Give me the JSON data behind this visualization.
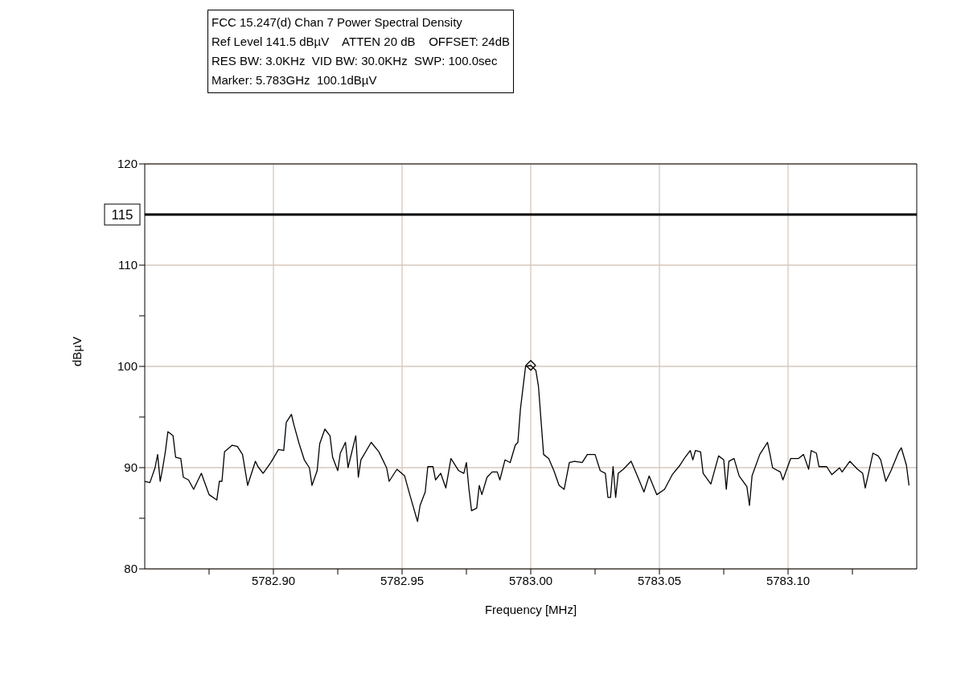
{
  "chart_data": {
    "type": "line",
    "title": "FCC 15.247(d) Chan 7 Power Spectral Density",
    "annotations": [
      "Ref Level 141.5 dBµV    ATTEN 20 dB    OFFSET: 24dB",
      "RES BW: 3.0KHz  VID BW: 30.0KHz  SWP: 100.0sec",
      "Marker: 5.783GHz  100.1dBµV"
    ],
    "xlabel": "Frequency [MHz]",
    "ylabel": "dBµV",
    "xlim": [
      5782.85,
      5783.15
    ],
    "xticks": [
      {
        "value": 5782.875,
        "label": null
      },
      {
        "value": 5782.9,
        "label": "5782.90"
      },
      {
        "value": 5782.925,
        "label": null
      },
      {
        "value": 5782.95,
        "label": "5782.95"
      },
      {
        "value": 5782.975,
        "label": null
      },
      {
        "value": 5783.0,
        "label": "5783.00"
      },
      {
        "value": 5783.025,
        "label": null
      },
      {
        "value": 5783.05,
        "label": "5783.05"
      },
      {
        "value": 5783.075,
        "label": null
      },
      {
        "value": 5783.1,
        "label": "5783.10"
      },
      {
        "value": 5783.125,
        "label": null
      }
    ],
    "ylim": [
      80,
      120
    ],
    "yticks": [
      80,
      {
        "value": 85,
        "label": null
      },
      90,
      {
        "value": 95,
        "label": null
      },
      100,
      {
        "value": 105,
        "label": null
      },
      110,
      120
    ],
    "grid": true,
    "ref_lines": [
      {
        "axis": "y",
        "value": 115,
        "label": "115",
        "color": "#000000"
      }
    ],
    "series": [
      {
        "type": "line",
        "color": "#000000",
        "x": [
          5782.85,
          5782.852,
          5782.854,
          5782.855,
          5782.856,
          5782.857,
          5782.858,
          5782.859,
          5782.861,
          5782.862,
          5782.864,
          5782.865,
          5782.867,
          5782.869,
          5782.872,
          5782.875,
          5782.878,
          5782.879,
          5782.88,
          5782.881,
          5782.884,
          5782.886,
          5782.888,
          5782.89,
          5782.893,
          5782.894,
          5782.896,
          5782.899,
          5782.902,
          5782.904,
          5782.905,
          5782.907,
          5782.908,
          5782.91,
          5782.912,
          5782.914,
          5782.915,
          5782.917,
          5782.918,
          5782.92,
          5782.922,
          5782.923,
          5782.925,
          5782.926,
          5782.928,
          5782.929,
          5782.932,
          5782.933,
          5782.934,
          5782.938,
          5782.941,
          5782.944,
          5782.945,
          5782.948,
          5782.951,
          5782.953,
          5782.956,
          5782.957,
          5782.959,
          5782.96,
          5782.962,
          5782.963,
          5782.965,
          5782.967,
          5782.969,
          5782.972,
          5782.974,
          5782.975,
          5782.976,
          5782.977,
          5782.979,
          5782.98,
          5782.981,
          5782.983,
          5782.985,
          5782.987,
          5782.988,
          5782.99,
          5782.992,
          5782.994,
          5782.995,
          5782.996,
          5782.997,
          5782.998,
          5783.0,
          5783.002,
          5783.003,
          5783.005,
          5783.007,
          5783.009,
          5783.011,
          5783.013,
          5783.015,
          5783.017,
          5783.02,
          5783.022,
          5783.025,
          5783.027,
          5783.029,
          5783.03,
          5783.031,
          5783.032,
          5783.033,
          5783.034,
          5783.036,
          5783.039,
          5783.041,
          5783.044,
          5783.046,
          5783.049,
          5783.052,
          5783.055,
          5783.058,
          5783.06,
          5783.062,
          5783.063,
          5783.064,
          5783.066,
          5783.067,
          5783.07,
          5783.073,
          5783.075,
          5783.076,
          5783.077,
          5783.079,
          5783.081,
          5783.084,
          5783.085,
          5783.086,
          5783.089,
          5783.092,
          5783.093,
          5783.094,
          5783.097,
          5783.098,
          5783.101,
          5783.104,
          5783.106,
          5783.108,
          5783.109,
          5783.111,
          5783.112,
          5783.115,
          5783.117,
          5783.12,
          5783.121,
          5783.124,
          5783.127,
          5783.129,
          5783.13,
          5783.133,
          5783.135,
          5783.136,
          5783.138,
          5783.14,
          5783.143,
          5783.144,
          5783.146,
          5783.147
        ],
        "values": [
          88.65,
          88.52,
          89.98,
          91.3,
          88.65,
          90.0,
          91.56,
          93.55,
          93.15,
          91.03,
          90.9,
          89.05,
          88.79,
          87.86,
          89.44,
          87.33,
          86.8,
          88.65,
          88.65,
          91.56,
          92.22,
          92.1,
          91.3,
          88.25,
          90.63,
          90.1,
          89.44,
          90.5,
          91.8,
          91.7,
          94.47,
          95.26,
          94.2,
          92.36,
          90.77,
          89.98,
          88.25,
          89.7,
          92.36,
          93.81,
          93.15,
          91.03,
          89.7,
          91.43,
          92.5,
          90.0,
          93.15,
          89.05,
          90.77,
          92.5,
          91.56,
          89.98,
          88.65,
          89.84,
          89.18,
          87.33,
          84.68,
          86.27,
          87.6,
          90.1,
          90.1,
          88.79,
          89.44,
          87.99,
          90.9,
          89.7,
          89.44,
          90.5,
          87.86,
          85.74,
          86.0,
          88.25,
          87.33,
          89.05,
          89.57,
          89.57,
          88.79,
          90.77,
          90.5,
          92.22,
          92.5,
          95.79,
          97.91,
          100.0,
          100.1,
          99.6,
          98.04,
          91.3,
          90.9,
          89.7,
          88.25,
          87.86,
          90.5,
          90.63,
          90.5,
          91.3,
          91.3,
          89.7,
          89.44,
          87.06,
          87.06,
          90.1,
          87.06,
          89.44,
          89.84,
          90.63,
          89.44,
          87.6,
          89.18,
          87.33,
          87.86,
          89.31,
          90.24,
          91.03,
          91.69,
          90.77,
          91.69,
          91.56,
          89.44,
          88.38,
          91.16,
          90.77,
          87.86,
          90.63,
          90.9,
          89.18,
          88.12,
          86.27,
          89.18,
          91.3,
          92.5,
          91.3,
          89.98,
          89.57,
          88.79,
          90.9,
          90.9,
          91.3,
          89.84,
          91.69,
          91.43,
          90.1,
          90.1,
          89.31,
          89.98,
          89.57,
          90.63,
          89.84,
          89.44,
          87.99,
          91.43,
          91.16,
          90.77,
          88.65,
          89.7,
          91.56,
          91.96,
          90.24,
          88.25
        ]
      },
      {
        "type": "scatter",
        "marker": "diamond",
        "color": "#000000",
        "x": [
          5783.0
        ],
        "values": [
          100.1
        ]
      }
    ]
  }
}
